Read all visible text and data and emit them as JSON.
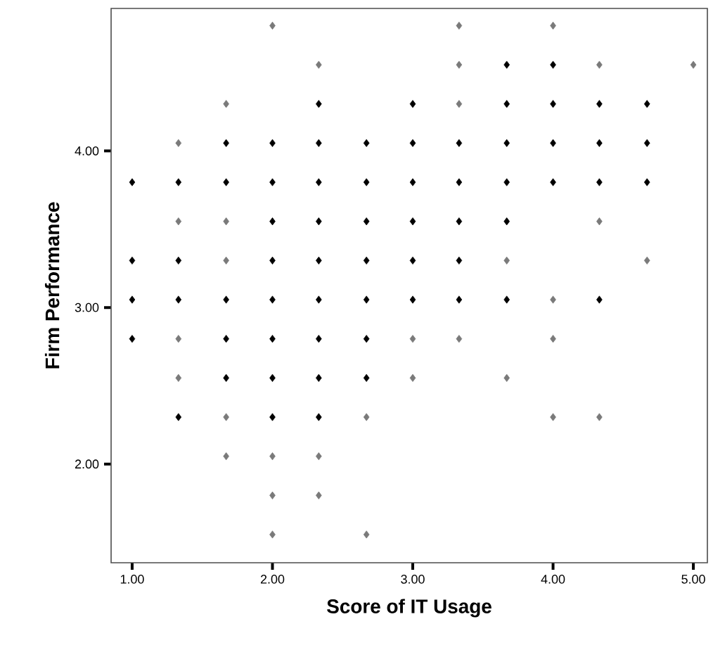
{
  "chart_data": {
    "type": "scatter",
    "xlabel": "Score of  IT Usage",
    "ylabel": "Firm Performance",
    "xlim": [
      0.85,
      5.1
    ],
    "ylim": [
      1.37,
      4.91
    ],
    "xticks": [
      {
        "value": 1,
        "label": "1.00"
      },
      {
        "value": 2,
        "label": "2.00"
      },
      {
        "value": 3,
        "label": "3.00"
      },
      {
        "value": 4,
        "label": "4.00"
      },
      {
        "value": 5,
        "label": "5.00"
      }
    ],
    "yticks": [
      {
        "value": 2,
        "label": "2.00"
      },
      {
        "value": 3,
        "label": "3.00"
      },
      {
        "value": 4,
        "label": "4.00"
      }
    ],
    "grid": false,
    "marker": "diamond",
    "series": [
      {
        "color": "#000000",
        "x": [
          3.67,
          4,
          2.33,
          3,
          3.67,
          4,
          4.33,
          4.67,
          1.67,
          2,
          2.33,
          2.67,
          3,
          3.33,
          3.67,
          4,
          4.33,
          4.67,
          1,
          1.33,
          1.67,
          2,
          2.33,
          2.67,
          3,
          3.33,
          3.67,
          4,
          4.33,
          4.67,
          2,
          2.33,
          2.67,
          3,
          3.33,
          3.67,
          1,
          1.33,
          2,
          2.33,
          2.67,
          3,
          3.33,
          1,
          1.33,
          1.67,
          2,
          2.33,
          2.67,
          3,
          3.33,
          3.67,
          4.33,
          1,
          1.67,
          2,
          2.33,
          2.67,
          1.67,
          2,
          2.33,
          2.67,
          1.33,
          2,
          2.33
        ],
        "values": [
          4.55,
          4.55,
          4.3,
          4.3,
          4.3,
          4.3,
          4.3,
          4.3,
          4.05,
          4.05,
          4.05,
          4.05,
          4.05,
          4.05,
          4.05,
          4.05,
          4.05,
          4.05,
          3.8,
          3.8,
          3.8,
          3.8,
          3.8,
          3.8,
          3.8,
          3.8,
          3.8,
          3.8,
          3.8,
          3.8,
          3.55,
          3.55,
          3.55,
          3.55,
          3.55,
          3.55,
          3.3,
          3.3,
          3.3,
          3.3,
          3.3,
          3.3,
          3.3,
          3.05,
          3.05,
          3.05,
          3.05,
          3.05,
          3.05,
          3.05,
          3.05,
          3.05,
          3.05,
          2.8,
          2.8,
          2.8,
          2.8,
          2.8,
          2.55,
          2.55,
          2.55,
          2.55,
          2.3,
          2.3,
          2.3
        ]
      },
      {
        "color": "#7a7a7a",
        "x": [
          2,
          3.33,
          4,
          2.33,
          3.33,
          4.33,
          5,
          1.67,
          3.33,
          1.33,
          1.33,
          1.67,
          4.33,
          1.67,
          3.67,
          4.67,
          4,
          1.33,
          3,
          3.33,
          4,
          1.33,
          3,
          3.67,
          1.67,
          2.67,
          4,
          4.33,
          1.67,
          2,
          2.33,
          2,
          2.33,
          2,
          2.67
        ],
        "values": [
          4.8,
          4.8,
          4.8,
          4.55,
          4.55,
          4.55,
          4.55,
          4.3,
          4.3,
          4.05,
          3.55,
          3.55,
          3.55,
          3.3,
          3.3,
          3.3,
          3.05,
          2.8,
          2.8,
          2.8,
          2.8,
          2.55,
          2.55,
          2.55,
          2.3,
          2.3,
          2.3,
          2.3,
          2.05,
          2.05,
          2.05,
          1.8,
          1.8,
          1.55,
          1.55
        ]
      }
    ]
  }
}
